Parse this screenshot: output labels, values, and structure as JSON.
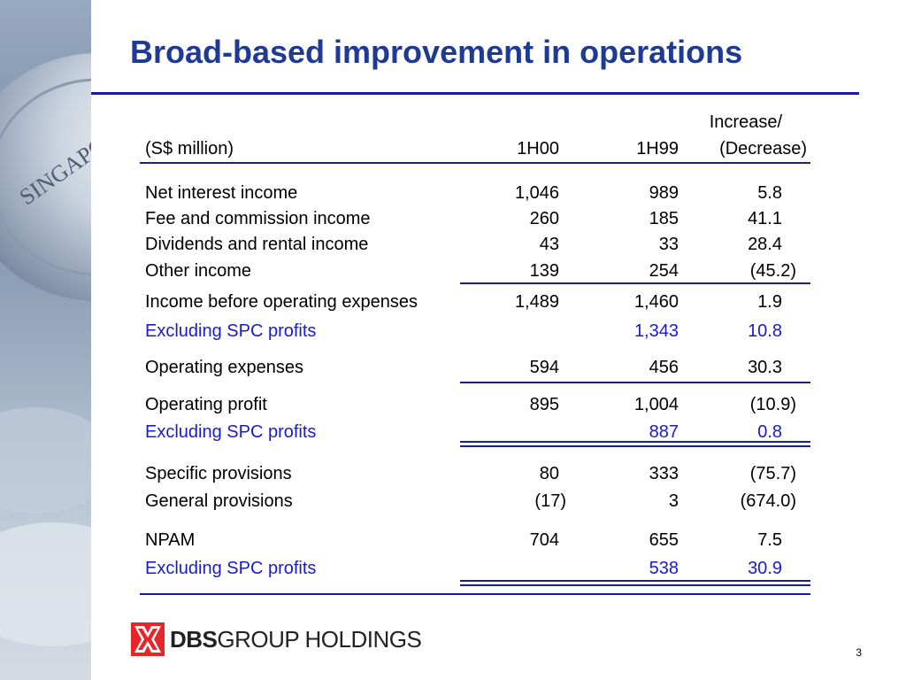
{
  "slide": {
    "title": "Broad-based improvement in operations",
    "page_number": "3"
  },
  "table": {
    "header": {
      "label": "(S$ million)",
      "col1": "1H00",
      "col2": "1H99",
      "col3_line1": "Increase/",
      "col3_line2": "(Decrease)"
    },
    "rows": [
      {
        "label": "Net interest income",
        "h00": "1,046",
        "h99": "989",
        "change": "5.8"
      },
      {
        "label": "Fee and commission income",
        "h00": "260",
        "h99": "185",
        "change": "41.1"
      },
      {
        "label": "Dividends and rental income",
        "h00": "43",
        "h99": "33",
        "change": "28.4"
      },
      {
        "label": "Other income",
        "h00": "139",
        "h99": "254",
        "change": "(45.2)"
      },
      {
        "label": "Income before operating expenses",
        "h00": "1,489",
        "h99": "1,460",
        "change": "1.9"
      },
      {
        "label": "Excluding SPC profits",
        "h00": "",
        "h99": "1,343",
        "change": "10.8"
      },
      {
        "label": "Operating expenses",
        "h00": "594",
        "h99": "456",
        "change": "30.3"
      },
      {
        "label": "Operating profit",
        "h00": "895",
        "h99": "1,004",
        "change": "(10.9)"
      },
      {
        "label": "Excluding SPC profits",
        "h00": "",
        "h99": "887",
        "change": "0.8"
      },
      {
        "label": "Specific provisions",
        "h00": "80",
        "h99": "333",
        "change": "(75.7)"
      },
      {
        "label": "General provisions",
        "h00": "(17)",
        "h99": "3",
        "change": "(674.0)"
      },
      {
        "label": "NPAM",
        "h00": "704",
        "h99": "655",
        "change": "7.5"
      },
      {
        "label": "Excluding SPC profits",
        "h00": "",
        "h99": "538",
        "change": "30.9"
      }
    ]
  },
  "logo": {
    "bold_part": "DBS",
    "rest": "GROUP HOLDINGS",
    "mark_color": "#e8262a"
  },
  "colors": {
    "title": "#1f3a93",
    "rule": "#1a1aa6",
    "highlight_text": "#1a1ad0"
  }
}
